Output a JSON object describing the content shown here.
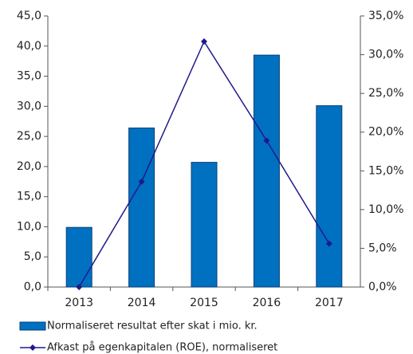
{
  "chart_data": {
    "type": "bar",
    "categories": [
      "2013",
      "2014",
      "2015",
      "2016",
      "2017"
    ],
    "series": [
      {
        "name": "Normaliseret resultat efter skat i mio. kr.",
        "type": "bar",
        "color": "#0070c0",
        "values": [
          9.9,
          26.4,
          20.7,
          38.5,
          30.1
        ]
      },
      {
        "name": "Afkast på egenkapitalen (ROE), normaliseret",
        "type": "line",
        "axis": "y2",
        "color": "#1f1a8c",
        "values": [
          0.0,
          13.6,
          31.7,
          18.9,
          5.6
        ]
      }
    ],
    "ylim": [
      0,
      45
    ],
    "yticks": [
      {
        "value": 0,
        "label": "0,0"
      },
      {
        "value": 5,
        "label": "5,0"
      },
      {
        "value": 10,
        "label": "10,0"
      },
      {
        "value": 15,
        "label": "15,0"
      },
      {
        "value": 20,
        "label": "20,0"
      },
      {
        "value": 25,
        "label": "25,0"
      },
      {
        "value": 30,
        "label": "30,0"
      },
      {
        "value": 35,
        "label": "35,0"
      },
      {
        "value": 40,
        "label": "40,0"
      },
      {
        "value": 45,
        "label": "45,0"
      }
    ],
    "y2lim": [
      0,
      35
    ],
    "y2ticks": [
      {
        "value": 0,
        "label": "0,0%"
      },
      {
        "value": 5,
        "label": "5,0%"
      },
      {
        "value": 10,
        "label": "10,0%"
      },
      {
        "value": 15,
        "label": "15,0%"
      },
      {
        "value": 20,
        "label": "20,0%"
      },
      {
        "value": 25,
        "label": "25,0%"
      },
      {
        "value": 30,
        "label": "30,0%"
      },
      {
        "value": 35,
        "label": "35,0%"
      }
    ],
    "grid": false
  }
}
